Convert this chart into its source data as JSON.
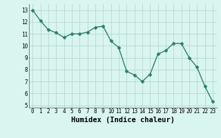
{
  "x": [
    0,
    1,
    2,
    3,
    4,
    5,
    6,
    7,
    8,
    9,
    10,
    11,
    12,
    13,
    14,
    15,
    16,
    17,
    18,
    19,
    20,
    21,
    22,
    23
  ],
  "y": [
    13.0,
    12.1,
    11.35,
    11.1,
    10.7,
    11.0,
    11.0,
    11.15,
    11.55,
    11.65,
    10.4,
    9.85,
    7.85,
    7.55,
    7.0,
    7.6,
    9.3,
    9.6,
    10.2,
    10.2,
    9.0,
    8.2,
    6.6,
    5.3
  ],
  "line_color": "#2e7d6e",
  "marker": "D",
  "marker_size": 2.5,
  "bg_color": "#d8f5f0",
  "grid_color": "#b8d8d2",
  "xlabel": "Humidex (Indice chaleur)",
  "ylim": [
    4.8,
    13.5
  ],
  "xlim": [
    -0.5,
    23.5
  ],
  "yticks": [
    5,
    6,
    7,
    8,
    9,
    10,
    11,
    12,
    13
  ],
  "xticks": [
    0,
    1,
    2,
    3,
    4,
    5,
    6,
    7,
    8,
    9,
    10,
    11,
    12,
    13,
    14,
    15,
    16,
    17,
    18,
    19,
    20,
    21,
    22,
    23
  ],
  "tick_fontsize": 5.5,
  "xlabel_fontsize": 7.5,
  "linewidth": 1.0
}
